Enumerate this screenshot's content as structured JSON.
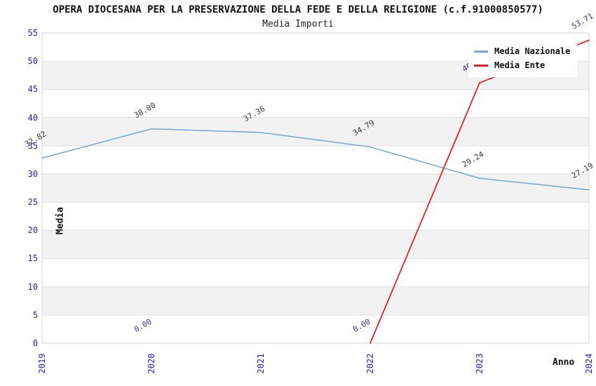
{
  "header": {
    "title": "OPERA DIOCESANA PER LA PRESERVAZIONE DELLA FEDE E DELLA RELIGIONE (c.f.91000850577)",
    "subtitle": "Media Importi"
  },
  "legend": {
    "items": [
      {
        "label": "Media Nazionale",
        "color": "#6fa8dc"
      },
      {
        "label": "Media Ente",
        "color": "#e82222"
      }
    ]
  },
  "axes": {
    "y_label": "Media",
    "x_label": "Anno",
    "tick_color": "#2222cc"
  },
  "colors": {
    "band_gray": "#f2f2f2",
    "grid": "#dedede",
    "border": "#d6d6d6"
  },
  "chart_data": {
    "type": "line",
    "title": "OPERA DIOCESANA PER LA PRESERVAZIONE DELLA FEDE E DELLA RELIGIONE (c.f.91000850577)",
    "subtitle": "Media Importi",
    "xlabel": "Anno",
    "ylabel": "Media",
    "categories": [
      "2019",
      "2020",
      "2021",
      "2022",
      "2023",
      "2024"
    ],
    "series": [
      {
        "name": "Media Nazionale",
        "color": "#6fa8dc",
        "label_color": "#3a3a3a",
        "values": [
          32.82,
          38.0,
          37.36,
          34.79,
          29.24,
          27.19
        ],
        "labels": [
          "32.82",
          "38.00",
          "37.36",
          "34.79",
          "29.24",
          "27.19"
        ]
      },
      {
        "name": "Media Ente",
        "color": "#e82222",
        "label_color": "#333399",
        "values": [
          null,
          0.0,
          null,
          0.0,
          46.17,
          53.71
        ],
        "labels": [
          null,
          "0.00",
          null,
          "0.00",
          "46.17",
          "53.71"
        ]
      }
    ],
    "ylim": [
      0,
      55
    ],
    "ytick_step": 5,
    "grid": true,
    "band_fill": "alternating",
    "legend_position": "top-right"
  }
}
